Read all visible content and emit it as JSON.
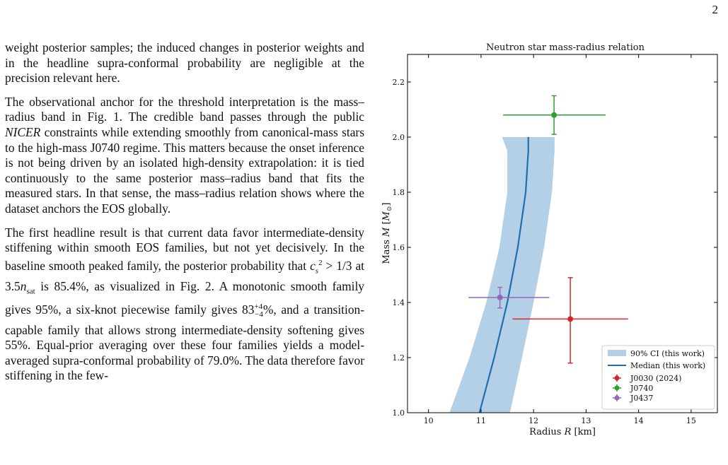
{
  "page_number": "2",
  "paragraphs": [
    {
      "html": "weight posterior samples; the induced changes in posterior weights and in the headline supra-conformal probability are negligible at the precision relevant here."
    },
    {
      "html": "The observational anchor for the threshold interpretation is the mass–radius band in Fig. 1. The credible band passes through the public <i>NICER</i> constraints while extending smoothly from canonical-mass stars to the high-mass J0740 regime. This matters because the onset inference is not being driven by an isolated high-density extrapolation: it is tied continuously to the same posterior mass–radius band that fits the measured stars. In that sense, the mass–radius relation shows where the dataset anchors the EOS globally."
    },
    {
      "html": "The first headline result is that current data favor intermediate-density stiffening within smooth EOS families, but not yet decisively. In the baseline smooth peaked family, the posterior probability that <i>c</i><sub style=\"font-size:11px\"><i>s</i></sub><sup style=\"font-size:11px\">2</sup> &gt; 1/3 at 3.5<i>n</i><sub style=\"font-size:11px\">sat</sub> is 85.4%, as visualized in Fig. 2. A monotonic smooth family gives 95%, a six-knot piecewise family gives 83<sup style=\"font-size:11px\">+4</sup><sub style=\"font-size:11px;margin-left:-11px\">−4</sub>%, and a transition-capable family that allows strong intermediate-density softening gives 55%. Equal-prior averaging over these four families yields a model-averaged supra-conformal probability of 79.0%. The data therefore favor stiffening in the few-"
    }
  ],
  "chart_data": {
    "type": "line",
    "title": "Neutron star mass-radius relation",
    "xlabel": "Radius R [km]",
    "ylabel": "Mass M [M⊙]",
    "xlim": [
      9.6,
      15.5
    ],
    "ylim": [
      1.0,
      2.3
    ],
    "xticks": [
      10,
      11,
      12,
      13,
      14,
      15
    ],
    "yticks": [
      1.0,
      1.2,
      1.4,
      1.6,
      1.8,
      2.0,
      2.2
    ],
    "grid": false,
    "legend_position": "lower-right",
    "band": {
      "name": "90% CI (this work)",
      "color": "#b4d0e6",
      "mass": [
        1.0,
        1.2,
        1.4,
        1.6,
        1.8,
        1.95,
        2.0
      ],
      "r_low": [
        10.4,
        10.78,
        11.1,
        11.35,
        11.5,
        11.5,
        11.4
      ],
      "r_high": [
        11.55,
        11.78,
        12.0,
        12.2,
        12.35,
        12.4,
        12.4
      ]
    },
    "median": {
      "name": "Median (this work)",
      "color": "#1f6fb0",
      "mass": [
        1.0,
        1.2,
        1.4,
        1.6,
        1.8,
        1.95,
        2.0
      ],
      "radius": [
        10.97,
        11.25,
        11.5,
        11.7,
        11.85,
        11.9,
        11.9
      ]
    },
    "points": [
      {
        "name": "J0030 (2024)",
        "color": "#d62728",
        "r": 12.7,
        "r_lo": 11.6,
        "r_hi": 13.8,
        "m": 1.34,
        "m_lo": 1.18,
        "m_hi": 1.49
      },
      {
        "name": "J0740",
        "color": "#2ca02c",
        "r": 12.39,
        "r_lo": 11.42,
        "r_hi": 13.37,
        "m": 2.08,
        "m_lo": 2.01,
        "m_hi": 2.15
      },
      {
        "name": "J0437",
        "color": "#9467bd",
        "r": 11.36,
        "r_lo": 10.76,
        "r_hi": 12.3,
        "m": 1.418,
        "m_lo": 1.38,
        "m_hi": 1.455
      }
    ]
  }
}
